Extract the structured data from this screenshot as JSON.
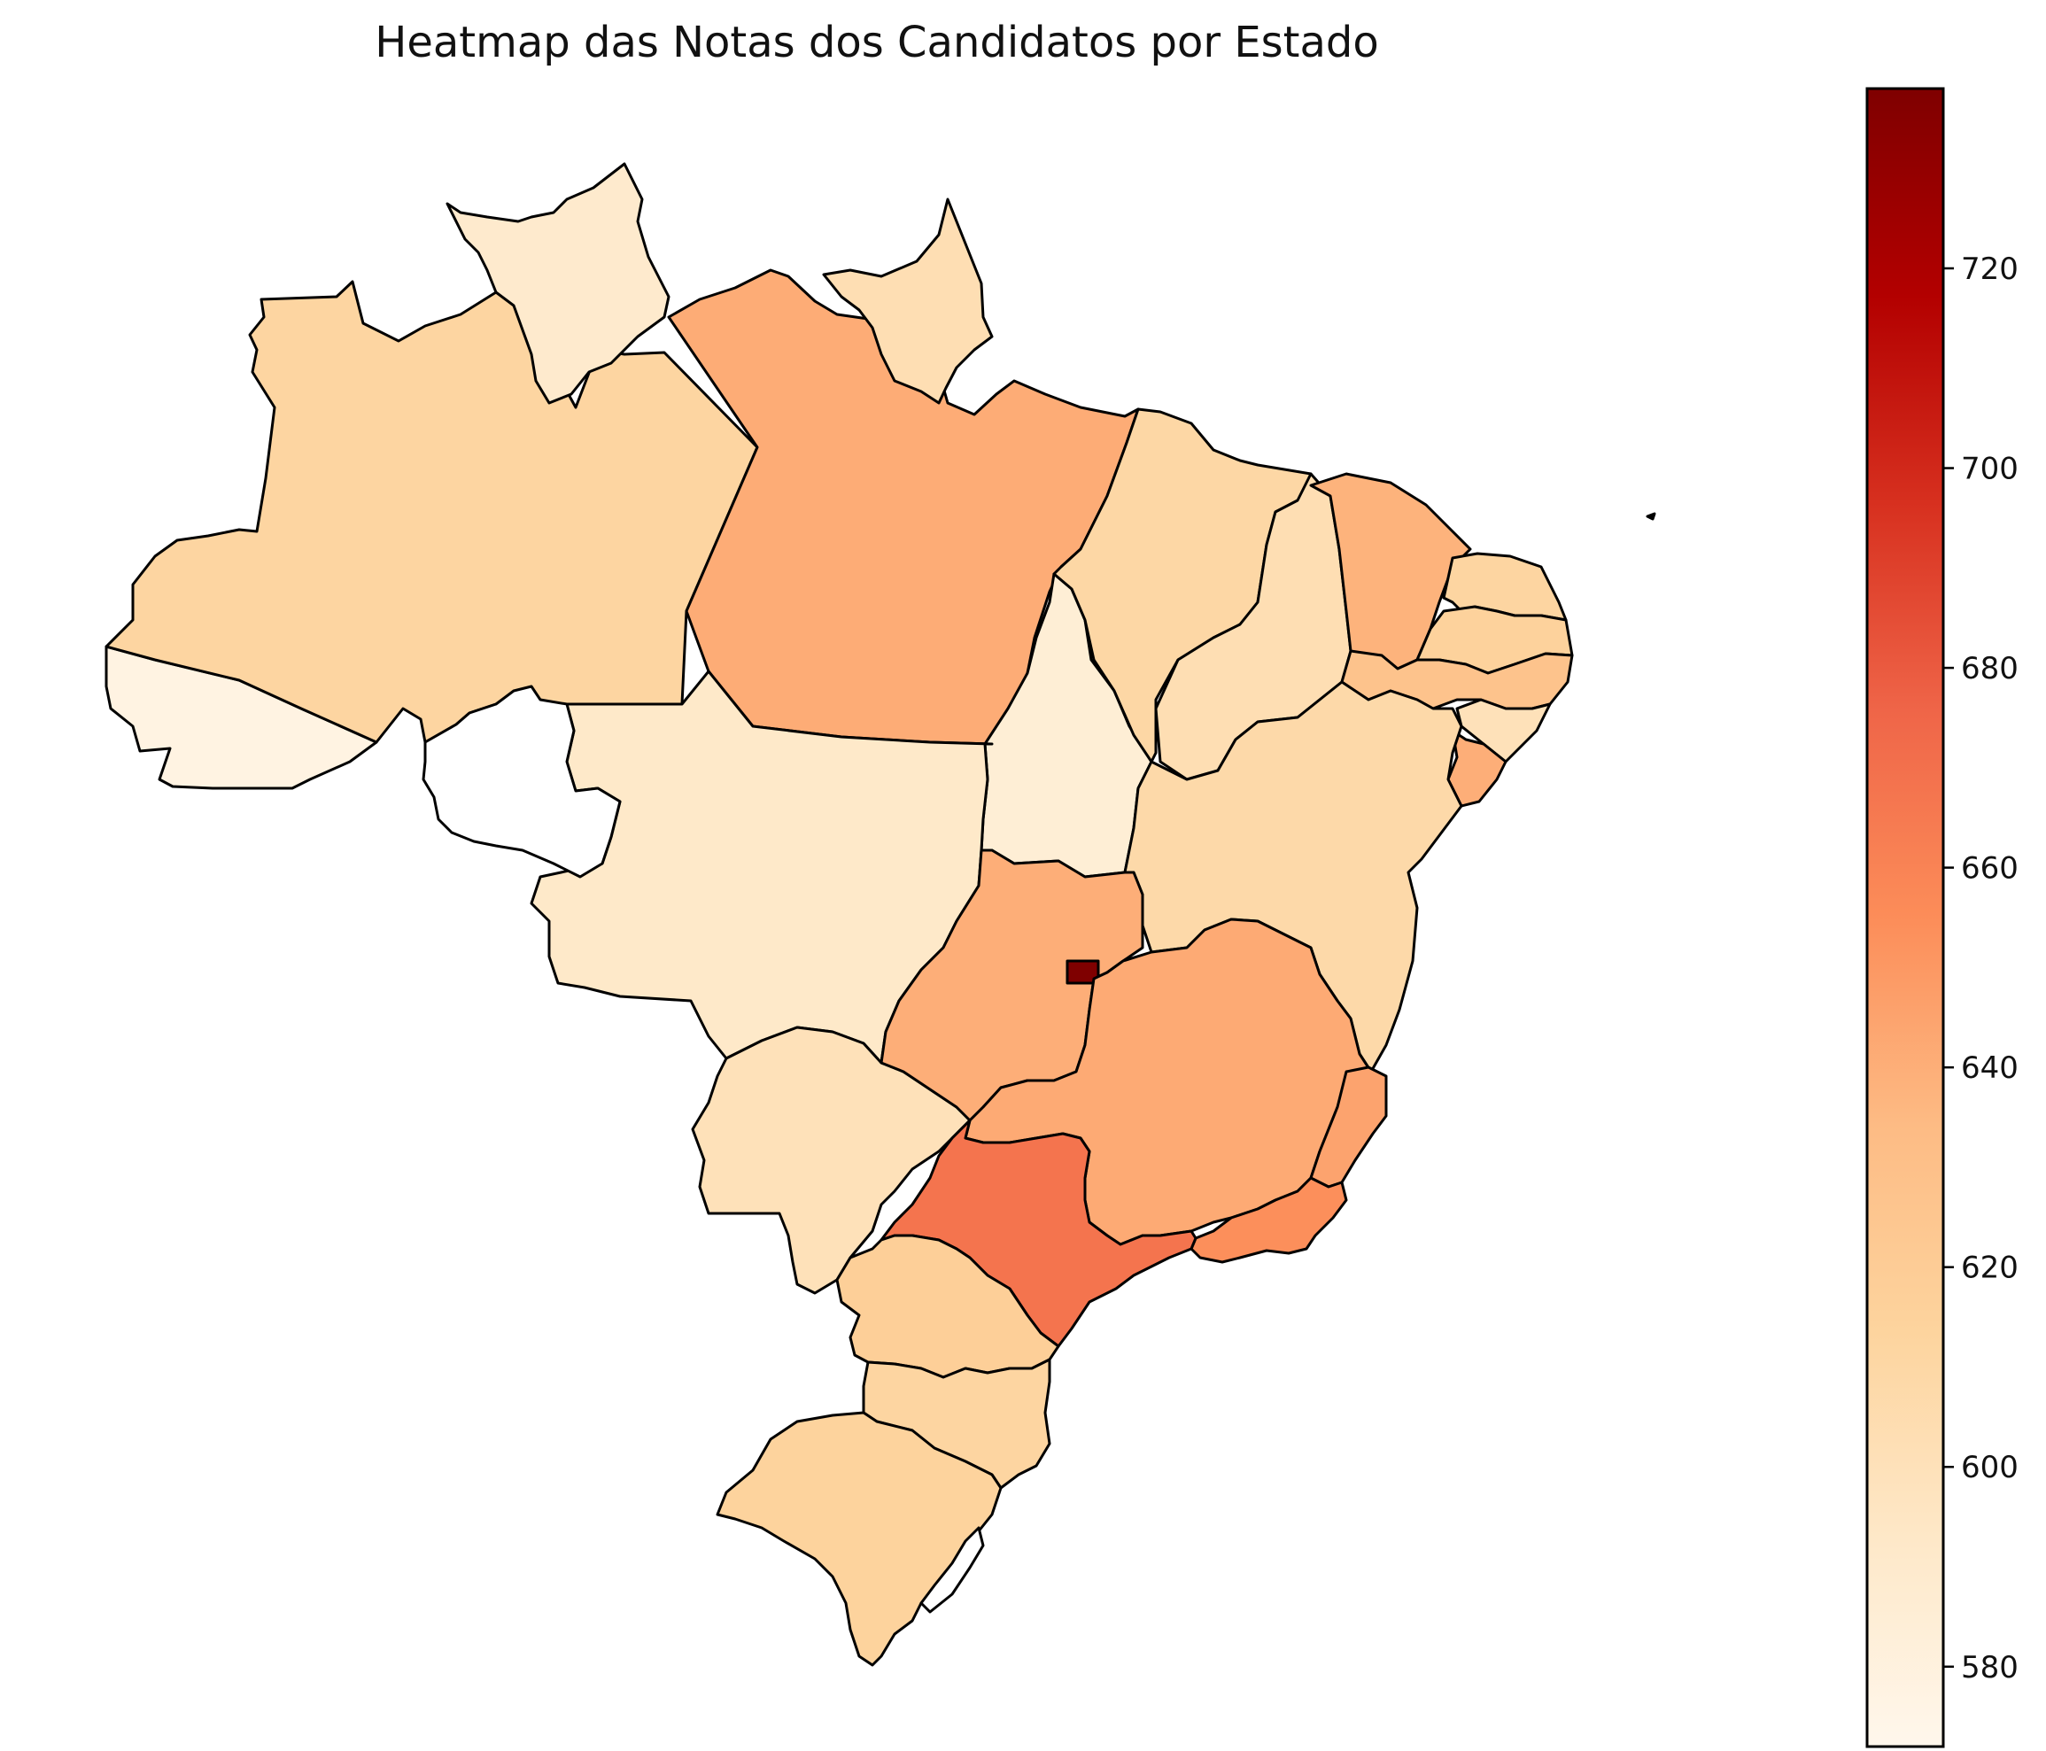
{
  "chart_data": {
    "type": "heatmap",
    "title": "Heatmap das Notas dos Candidatos por Estado",
    "colormap": "OrRd",
    "colorbar": {
      "min": 572,
      "max": 738,
      "ticks": [
        580,
        600,
        620,
        640,
        660,
        680,
        700,
        720
      ]
    },
    "states": [
      {
        "code": "AC",
        "value": 578
      },
      {
        "code": "AM",
        "value": 612
      },
      {
        "code": "RR",
        "value": 590
      },
      {
        "code": "RO",
        "value": null
      },
      {
        "code": "PA",
        "value": 641
      },
      {
        "code": "AP",
        "value": 603
      },
      {
        "code": "TO",
        "value": 585
      },
      {
        "code": "MA",
        "value": 610
      },
      {
        "code": "PI",
        "value": 603
      },
      {
        "code": "CE",
        "value": 638
      },
      {
        "code": "RN",
        "value": 612
      },
      {
        "code": "PB",
        "value": 615
      },
      {
        "code": "PE",
        "value": 628
      },
      {
        "code": "AL",
        "value": 600
      },
      {
        "code": "SE",
        "value": 640
      },
      {
        "code": "BA",
        "value": 608
      },
      {
        "code": "MT",
        "value": 592
      },
      {
        "code": "MS",
        "value": 600
      },
      {
        "code": "GO",
        "value": 640
      },
      {
        "code": "DF",
        "value": 738
      },
      {
        "code": "MG",
        "value": 642
      },
      {
        "code": "ES",
        "value": 645
      },
      {
        "code": "RJ",
        "value": 654
      },
      {
        "code": "SP",
        "value": 668
      },
      {
        "code": "PR",
        "value": 618
      },
      {
        "code": "SC",
        "value": 612
      },
      {
        "code": "RS",
        "value": 614
      }
    ]
  }
}
